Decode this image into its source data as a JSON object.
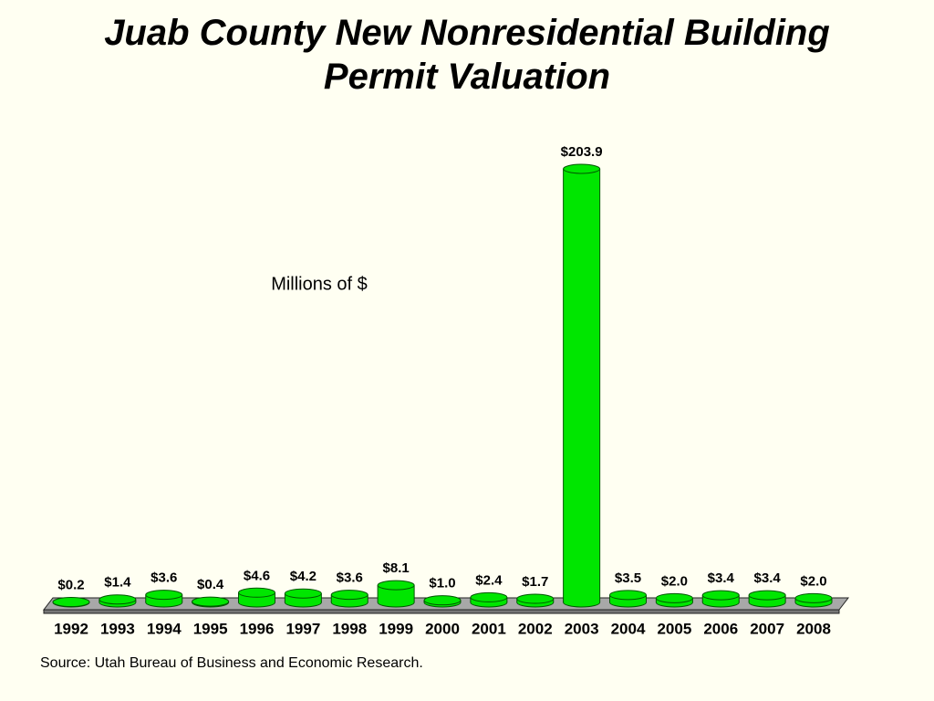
{
  "chart_data": {
    "type": "bar",
    "title": "Juab County New Nonresidential Building Permit Valuation",
    "annotation": "Millions of $",
    "source": "Source: Utah Bureau of Business and Economic Research.",
    "categories": [
      "1992",
      "1993",
      "1994",
      "1995",
      "1996",
      "1997",
      "1998",
      "1999",
      "2000",
      "2001",
      "2002",
      "2003",
      "2004",
      "2005",
      "2006",
      "2007",
      "2008"
    ],
    "values": [
      0.2,
      1.4,
      3.6,
      0.4,
      4.6,
      4.2,
      3.6,
      8.1,
      1.0,
      2.4,
      1.7,
      203.9,
      3.5,
      2.0,
      3.4,
      3.4,
      2.0
    ],
    "value_labels": [
      "$0.2",
      "$1.4",
      "$3.6",
      "$0.4",
      "$4.6",
      "$4.2",
      "$3.6",
      "$8.1",
      "$1.0",
      "$2.4",
      "$1.7",
      "$203.9",
      "$3.5",
      "$2.0",
      "$3.4",
      "$3.4",
      "$2.0"
    ],
    "color": "#00e600"
  }
}
